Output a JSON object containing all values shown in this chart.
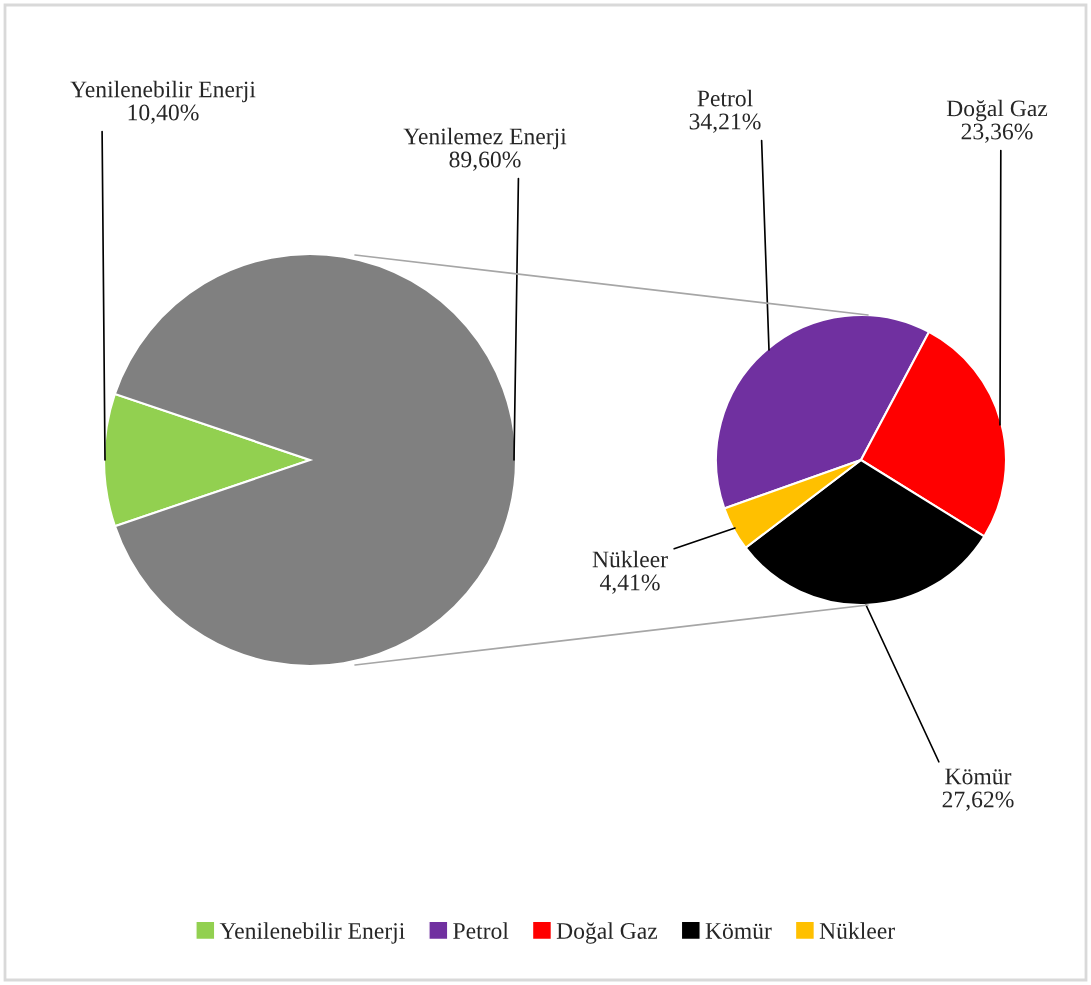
{
  "chart_data": [
    {
      "type": "pie",
      "categories": [
        "Yenilenebilir Enerji",
        "Yenilemez Enerji"
      ],
      "values": [
        10.4,
        89.6
      ],
      "colors": [
        "#92d050",
        "#808080"
      ],
      "value_labels": [
        "10,40%",
        "89,60%"
      ],
      "legend": "bottom"
    },
    {
      "type": "pie",
      "categories": [
        "Petrol",
        "Doğal Gaz",
        "Kömür",
        "Nükleer"
      ],
      "values": [
        34.21,
        23.36,
        27.62,
        4.41
      ],
      "colors": [
        "#7030a0",
        "#ff0000",
        "#000000",
        "#ffc000"
      ],
      "value_labels": [
        "34,21%",
        "23,36%",
        "27,62%",
        "4,41%"
      ],
      "legend": "bottom"
    }
  ]
}
